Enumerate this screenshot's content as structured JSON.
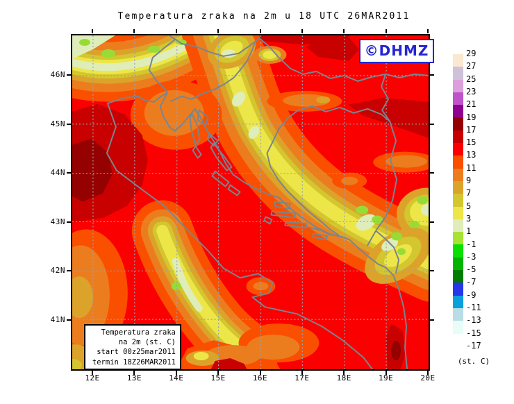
{
  "title": "Temperatura zraka na 2m u 18 UTC 26MAR2011",
  "watermark": {
    "label": "©DHMZ"
  },
  "info_box": {
    "line1": "Temperatura zraka",
    "line2": "na 2m (st. C)",
    "line3": "start 00z25mar2011",
    "line4": "termin 18Z26MAR2011"
  },
  "axes": {
    "x_labels": [
      "12E",
      "13E",
      "14E",
      "15E",
      "16E",
      "17E",
      "18E",
      "19E",
      "20E"
    ],
    "y_labels": [
      "46N",
      "45N",
      "44N",
      "43N",
      "42N",
      "41N"
    ]
  },
  "colorbar": {
    "unit": "(st. C)",
    "labels": [
      "29",
      "27",
      "25",
      "23",
      "21",
      "19",
      "17",
      "15",
      "13",
      "11",
      "9",
      "7",
      "5",
      "3",
      "1",
      "-1",
      "-3",
      "-5",
      "-7",
      "-9",
      "-11",
      "-13",
      "-15",
      "-17"
    ],
    "colors": [
      "#FBE8D0",
      "#CFC2D8",
      "#DBA0DB",
      "#BE53CB",
      "#8F0190",
      "#950000",
      "#C80000",
      "#FB0000",
      "#FB4F00",
      "#EC7D1F",
      "#DCA32A",
      "#D3C62F",
      "#EDE648",
      "#DFEDBA",
      "#A8E234",
      "#0ADF00",
      "#00B400",
      "#007C00",
      "#2638EA",
      "#0AA0DC",
      "#B8DDE4",
      "#E8FDF8",
      "#FFFFFF"
    ]
  },
  "field_colors": {
    "sea_red": "#FB0000",
    "dark_red": "#C80000",
    "deep_red": "#950000",
    "orange_red": "#FB4F00",
    "orange": "#EC7D1F",
    "tan": "#DCA32A",
    "dark_yellow": "#D3C62F",
    "yellow": "#EDE648",
    "pale_green": "#DFEDBA",
    "green": "#97DC36",
    "coastline_gray": "#7A848E",
    "grid_gray": "#98A2AC",
    "logo_blue": "#2424d2"
  }
}
